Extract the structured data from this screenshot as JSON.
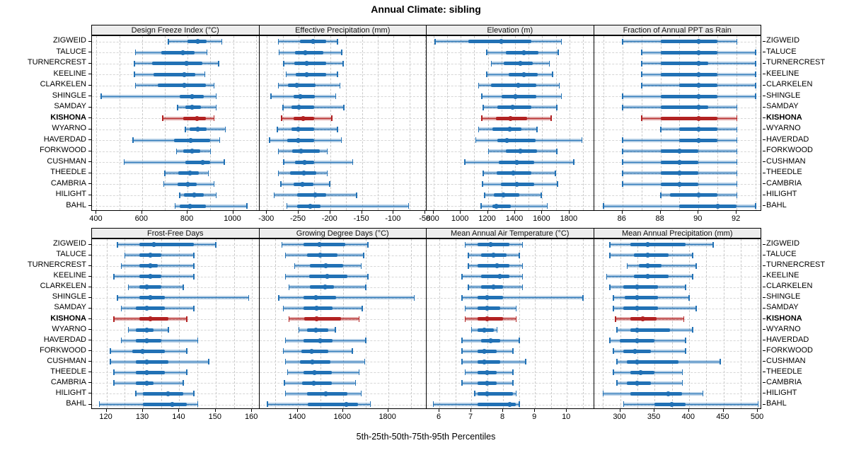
{
  "title": "Annual Climate: sibling",
  "footer": "5th-25th-50th-75th-95th Percentiles",
  "highlight_site": "KISHONA",
  "sites": [
    "ZIGWEID",
    "TALUCE",
    "TURNERCREST",
    "KEELINE",
    "CLARKELEN",
    "SHINGLE",
    "SAMDAY",
    "KISHONA",
    "WYARNO",
    "HAVERDAD",
    "FORKWOOD",
    "CUSHMAN",
    "THEEDLE",
    "CAMBRIA",
    "HILIGHT",
    "BAHL"
  ],
  "colors": {
    "series_blue": "#2171b5",
    "series_blue_light": "rgba(33,113,181,0.35)",
    "highlight_red": "#b22222",
    "highlight_red_light": "rgba(178,34,34,0.40)",
    "strip_bg": "#ededed",
    "grid": "#c9c9c9"
  },
  "chart_data": {
    "type": "percentile-dotplot-trellis",
    "percentile_levels": [
      5,
      25,
      50,
      75,
      95
    ],
    "layout": "2 rows x 4 columns, shared site axis",
    "legend_note": "values per site are [p5, p25, p50, p75, p95]",
    "panels": [
      {
        "title": "Design Freeze Index (°C)",
        "row": 0,
        "col": 0,
        "xlim": [
          380,
          1115
        ],
        "ticks": [
          400,
          600,
          800,
          1000
        ],
        "grid_step": 100,
        "values": [
          [
            715,
            800,
            845,
            885,
            950
          ],
          [
            570,
            685,
            780,
            830,
            885
          ],
          [
            565,
            645,
            795,
            865,
            935
          ],
          [
            565,
            650,
            785,
            835,
            875
          ],
          [
            570,
            670,
            785,
            880,
            915
          ],
          [
            420,
            765,
            820,
            870,
            925
          ],
          [
            755,
            790,
            820,
            860,
            925
          ],
          [
            690,
            780,
            840,
            880,
            915
          ],
          [
            790,
            810,
            845,
            885,
            965
          ],
          [
            560,
            740,
            815,
            900,
            940
          ],
          [
            750,
            780,
            820,
            855,
            900
          ],
          [
            520,
            790,
            865,
            900,
            960
          ],
          [
            700,
            760,
            810,
            850,
            890
          ],
          [
            695,
            755,
            800,
            840,
            915
          ],
          [
            765,
            785,
            830,
            870,
            925
          ],
          [
            745,
            765,
            810,
            880,
            1060
          ]
        ]
      },
      {
        "title": "Effective Precipitation (mm)",
        "row": 0,
        "col": 1,
        "xlim": [
          -312,
          -48
        ],
        "ticks": [
          -300,
          -250,
          -200,
          -150,
          -100,
          -50
        ],
        "grid_step": 25,
        "values": [
          [
            -282,
            -248,
            -227,
            -206,
            -189
          ],
          [
            -281,
            -256,
            -240,
            -211,
            -182
          ],
          [
            -274,
            -257,
            -237,
            -206,
            -180
          ],
          [
            -270,
            -255,
            -237,
            -207,
            -189
          ],
          [
            -282,
            -267,
            -253,
            -223,
            -185
          ],
          [
            -294,
            -258,
            -247,
            -224,
            -192
          ],
          [
            -275,
            -261,
            -249,
            -225,
            -179
          ],
          [
            -277,
            -258,
            -243,
            -226,
            -198
          ],
          [
            -284,
            -261,
            -251,
            -225,
            -189
          ],
          [
            -296,
            -268,
            -251,
            -226,
            -183
          ],
          [
            -282,
            -260,
            -246,
            -216,
            -205
          ],
          [
            -274,
            -256,
            -241,
            -225,
            -165
          ],
          [
            -282,
            -263,
            -242,
            -222,
            -205
          ],
          [
            -278,
            -258,
            -244,
            -227,
            -201
          ],
          [
            -289,
            -252,
            -224,
            -206,
            -159
          ],
          [
            -269,
            -252,
            -232,
            -215,
            -77
          ]
        ]
      },
      {
        "title": "Elevation (m)",
        "row": 0,
        "col": 2,
        "xlim": [
          750,
          1980
        ],
        "ticks": [
          800,
          1000,
          1200,
          1400,
          1600,
          1800
        ],
        "grid_step": 100,
        "values": [
          [
            810,
            1055,
            1300,
            1520,
            1740
          ],
          [
            1190,
            1335,
            1465,
            1570,
            1715
          ],
          [
            1225,
            1315,
            1440,
            1530,
            1650
          ],
          [
            1190,
            1355,
            1465,
            1565,
            1675
          ],
          [
            1130,
            1225,
            1425,
            1555,
            1725
          ],
          [
            1155,
            1300,
            1405,
            1555,
            1740
          ],
          [
            1165,
            1270,
            1380,
            1520,
            1705
          ],
          [
            1155,
            1260,
            1365,
            1490,
            1665
          ],
          [
            1130,
            1235,
            1360,
            1445,
            1560
          ],
          [
            1110,
            1270,
            1340,
            1550,
            1890
          ],
          [
            1205,
            1330,
            1440,
            1560,
            1705
          ],
          [
            1030,
            1280,
            1415,
            1540,
            1830
          ],
          [
            1165,
            1265,
            1385,
            1520,
            1695
          ],
          [
            1160,
            1295,
            1415,
            1540,
            1710
          ],
          [
            1175,
            1245,
            1315,
            1430,
            1590
          ],
          [
            1150,
            1235,
            1260,
            1370,
            1635
          ]
        ]
      },
      {
        "title": "Fraction of Annual PPT as Rain",
        "row": 0,
        "col": 3,
        "xlim": [
          84.5,
          93.3
        ],
        "ticks": [
          86,
          88,
          90,
          92
        ],
        "grid_step": 1,
        "values": [
          [
            86,
            88,
            90,
            91,
            92
          ],
          [
            87,
            88,
            90,
            91,
            93
          ],
          [
            87,
            88,
            90,
            90.5,
            93
          ],
          [
            87,
            88,
            90,
            91,
            93
          ],
          [
            87,
            89,
            90,
            91,
            93
          ],
          [
            86,
            88,
            90,
            91,
            93
          ],
          [
            86,
            88,
            90,
            90.5,
            92
          ],
          [
            87,
            88,
            90,
            91,
            92
          ],
          [
            88,
            89,
            90,
            91,
            92
          ],
          [
            86,
            89,
            90,
            91,
            92
          ],
          [
            86,
            88,
            89,
            90,
            92
          ],
          [
            86,
            88,
            89,
            90,
            92
          ],
          [
            86,
            88,
            89,
            90,
            92
          ],
          [
            86,
            88,
            89,
            90,
            92
          ],
          [
            88,
            88.5,
            90,
            91,
            92
          ],
          [
            85,
            89,
            91,
            92,
            93
          ]
        ]
      },
      {
        "title": "Frost-Free Days",
        "row": 1,
        "col": 0,
        "xlim": [
          116,
          162
        ],
        "ticks": [
          120,
          130,
          140,
          150,
          160
        ],
        "grid_step": 5,
        "values": [
          [
            123,
            129,
            133,
            144,
            150
          ],
          [
            125,
            129,
            132,
            135,
            144
          ],
          [
            124,
            129,
            132,
            134,
            144
          ],
          [
            122,
            129,
            132,
            135,
            144
          ],
          [
            126,
            129,
            131,
            135,
            141
          ],
          [
            123,
            129,
            132,
            136,
            159
          ],
          [
            124,
            128,
            131,
            136,
            144
          ],
          [
            122,
            129,
            132,
            137,
            142
          ],
          [
            126,
            128,
            131,
            133,
            137
          ],
          [
            124,
            128,
            131,
            135,
            145
          ],
          [
            121,
            127,
            130,
            136,
            142
          ],
          [
            121,
            128,
            131,
            137,
            148
          ],
          [
            122,
            128,
            131,
            136,
            142
          ],
          [
            122,
            128,
            131,
            133,
            141
          ],
          [
            128,
            130,
            137,
            141,
            144
          ],
          [
            118,
            130,
            138,
            142,
            145
          ]
        ]
      },
      {
        "title": "Growing Degree Days (°C)",
        "row": 1,
        "col": 1,
        "xlim": [
          1230,
          1970
        ],
        "ticks": [
          1400,
          1600,
          1800
        ],
        "grid_step": 100,
        "values": [
          [
            1330,
            1425,
            1495,
            1610,
            1710
          ],
          [
            1345,
            1440,
            1500,
            1575,
            1690
          ],
          [
            1385,
            1455,
            1525,
            1600,
            1680
          ],
          [
            1345,
            1450,
            1530,
            1620,
            1710
          ],
          [
            1360,
            1455,
            1520,
            1560,
            1700
          ],
          [
            1315,
            1425,
            1480,
            1570,
            1915
          ],
          [
            1335,
            1425,
            1485,
            1555,
            1685
          ],
          [
            1360,
            1430,
            1485,
            1590,
            1670
          ],
          [
            1405,
            1440,
            1480,
            1535,
            1565
          ],
          [
            1345,
            1425,
            1500,
            1555,
            1700
          ],
          [
            1335,
            1415,
            1460,
            1535,
            1640
          ],
          [
            1345,
            1410,
            1465,
            1545,
            1695
          ],
          [
            1355,
            1425,
            1475,
            1550,
            1670
          ],
          [
            1340,
            1420,
            1470,
            1550,
            1655
          ],
          [
            1345,
            1440,
            1525,
            1620,
            1680
          ],
          [
            1265,
            1445,
            1615,
            1665,
            1720
          ]
        ]
      },
      {
        "title": "Mean Annual Air Temperature (°C)",
        "row": 1,
        "col": 2,
        "xlim": [
          5.6,
          10.85
        ],
        "ticks": [
          6,
          7,
          8,
          9,
          10
        ],
        "grid_step": 0.5,
        "values": [
          [
            6.8,
            7.2,
            7.6,
            8.2,
            8.6
          ],
          [
            6.9,
            7.3,
            7.7,
            8.1,
            8.5
          ],
          [
            6.9,
            7.2,
            7.8,
            8.2,
            8.6
          ],
          [
            6.7,
            7.3,
            7.9,
            8.2,
            8.6
          ],
          [
            6.9,
            7.3,
            7.7,
            8.0,
            8.6
          ],
          [
            6.7,
            7.2,
            7.5,
            8.0,
            10.5
          ],
          [
            6.8,
            7.2,
            7.5,
            7.9,
            8.4
          ],
          [
            6.8,
            7.2,
            7.5,
            8.0,
            8.4
          ],
          [
            7.0,
            7.2,
            7.4,
            7.7,
            7.8
          ],
          [
            6.7,
            7.3,
            7.6,
            7.9,
            8.5
          ],
          [
            6.7,
            7.2,
            7.4,
            7.8,
            8.3
          ],
          [
            6.7,
            7.2,
            7.4,
            7.9,
            8.7
          ],
          [
            6.8,
            7.2,
            7.5,
            7.8,
            8.3
          ],
          [
            6.7,
            7.2,
            7.5,
            7.8,
            8.3
          ],
          [
            7.1,
            7.2,
            7.5,
            8.3,
            8.4
          ],
          [
            5.8,
            7.2,
            8.2,
            8.4,
            8.5
          ]
        ]
      },
      {
        "title": "Mean Annual Precipitation (mm)",
        "row": 1,
        "col": 3,
        "xlim": [
          262,
          505
        ],
        "ticks": [
          300,
          350,
          400,
          450,
          500
        ],
        "grid_step": 25,
        "values": [
          [
            285,
            315,
            340,
            395,
            435
          ],
          [
            285,
            320,
            340,
            370,
            405
          ],
          [
            310,
            327,
            340,
            360,
            410
          ],
          [
            280,
            320,
            340,
            370,
            405
          ],
          [
            285,
            305,
            325,
            355,
            395
          ],
          [
            290,
            307,
            325,
            355,
            400
          ],
          [
            290,
            305,
            325,
            355,
            410
          ],
          [
            293,
            315,
            333,
            353,
            392
          ],
          [
            295,
            315,
            325,
            372,
            405
          ],
          [
            285,
            300,
            325,
            350,
            395
          ],
          [
            290,
            305,
            322,
            345,
            395
          ],
          [
            295,
            310,
            325,
            385,
            445
          ],
          [
            290,
            315,
            330,
            350,
            390
          ],
          [
            295,
            310,
            325,
            345,
            390
          ],
          [
            275,
            315,
            370,
            390,
            420
          ],
          [
            305,
            350,
            375,
            395,
            500
          ]
        ]
      }
    ]
  }
}
